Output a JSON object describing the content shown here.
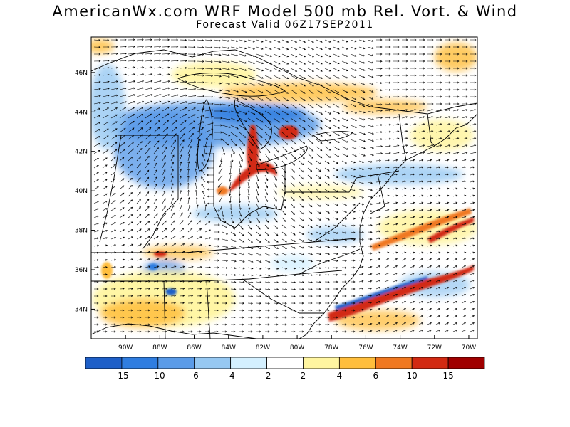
{
  "header": {
    "title": "AmericanWx.com WRF Model 500 mb Rel. Vort. & Wind",
    "subtitle": "Forecast Valid  06Z17SEP2011"
  },
  "axes": {
    "lat_labels": [
      "34N",
      "36N",
      "38N",
      "40N",
      "42N",
      "44N",
      "46N"
    ],
    "lat_values": [
      34,
      36,
      38,
      40,
      42,
      44,
      46
    ],
    "lon_labels": [
      "90W",
      "88W",
      "86W",
      "84W",
      "82W",
      "80W",
      "78W",
      "76W",
      "74W",
      "72W",
      "70W"
    ],
    "lon_values": [
      -90,
      -88,
      -86,
      -84,
      -82,
      -80,
      -78,
      -76,
      -74,
      -72,
      -70
    ],
    "lat_range": [
      32.5,
      47.8
    ],
    "lon_range": [
      -92,
      -69.5
    ]
  },
  "colorbar": {
    "labels": [
      "-15",
      "-10",
      "-6",
      "-4",
      "-2",
      "2",
      "4",
      "6",
      "10",
      "15"
    ],
    "colors": [
      "#1e5fc8",
      "#2f7de0",
      "#5a9be8",
      "#96c8f2",
      "#d4f0ff",
      "#ffffff",
      "#fff5a0",
      "#ffbe3c",
      "#f07820",
      "#d22a12",
      "#a00000"
    ]
  },
  "vorticity_features": [
    {
      "kind": "positive",
      "label": "lake-michigan-lobe"
    },
    {
      "kind": "positive",
      "label": "ohio-spiral"
    },
    {
      "kind": "positive",
      "label": "carolina-coastal-band"
    },
    {
      "kind": "negative",
      "label": "upper-midwest-trough"
    }
  ]
}
